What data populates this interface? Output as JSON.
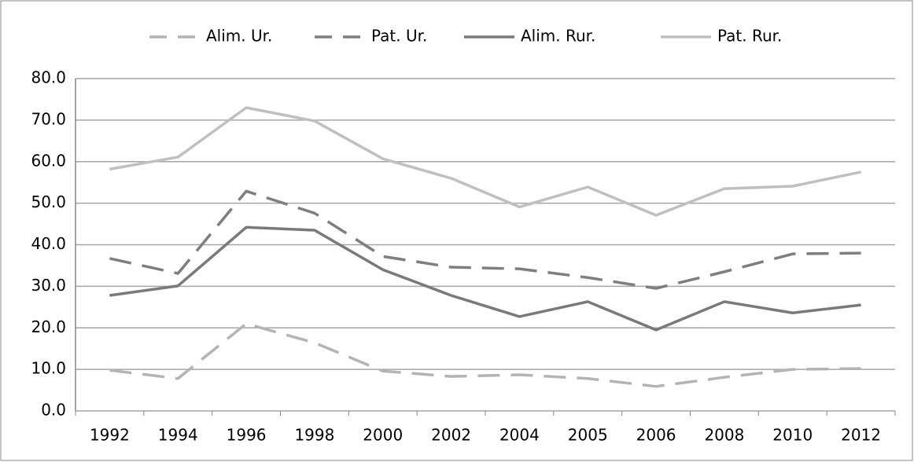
{
  "chart_data": {
    "type": "line",
    "categories": [
      "1992",
      "1994",
      "1996",
      "1998",
      "2000",
      "2002",
      "2004",
      "2005",
      "2006",
      "2008",
      "2010",
      "2012"
    ],
    "series": [
      {
        "name": "Alim. Ur.",
        "color": "#b4b4b4",
        "dash": true,
        "values": [
          9.8,
          7.8,
          21.0,
          16.4,
          9.6,
          8.3,
          8.7,
          7.8,
          5.9,
          8.1,
          10.0,
          10.2
        ]
      },
      {
        "name": "Pat. Ur.",
        "color": "#7f7f7f",
        "dash": true,
        "values": [
          36.7,
          33.1,
          52.9,
          47.6,
          37.2,
          34.6,
          34.2,
          32.1,
          29.5,
          33.5,
          37.8,
          38.0
        ]
      },
      {
        "name": "Alim. Rur.",
        "color": "#7a7a7a",
        "dash": false,
        "values": [
          27.8,
          30.1,
          44.2,
          43.5,
          34.0,
          27.8,
          22.7,
          26.3,
          19.5,
          26.3,
          23.6,
          25.5
        ]
      },
      {
        "name": "Pat. Rur.",
        "color": "#c0c0c0",
        "dash": false,
        "values": [
          58.2,
          61.1,
          73.0,
          69.8,
          60.7,
          56.0,
          49.1,
          53.9,
          47.1,
          53.5,
          54.1,
          57.5
        ]
      }
    ],
    "ylim": [
      0,
      80
    ],
    "yticks": [
      {
        "value": 0,
        "label": "0.0"
      },
      {
        "value": 10,
        "label": "10.0"
      },
      {
        "value": 20,
        "label": "20.0"
      },
      {
        "value": 30,
        "label": "30.0"
      },
      {
        "value": 40,
        "label": "40.0"
      },
      {
        "value": 50,
        "label": "50.0"
      },
      {
        "value": 60,
        "label": "60.0"
      },
      {
        "value": 70,
        "label": "70.0"
      },
      {
        "value": 80,
        "label": "80.0"
      }
    ],
    "grid": true,
    "legend": "top"
  }
}
